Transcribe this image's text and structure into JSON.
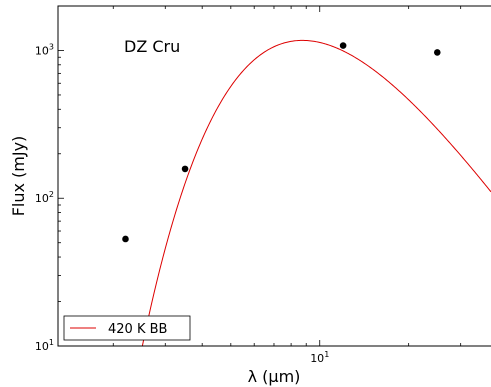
{
  "chart_data": {
    "type": "scatter",
    "title": "",
    "annotation": "DZ Cru",
    "xlabel": "λ (μm)",
    "ylabel": "Flux (mJy)",
    "xscale": "log",
    "yscale": "log",
    "xlim": [
      1.3,
      38
    ],
    "ylim": [
      10,
      2000
    ],
    "x_tick_labels": [
      {
        "value": 10,
        "base": "10",
        "exp": "1"
      }
    ],
    "y_tick_labels": [
      {
        "value": 10,
        "base": "10",
        "exp": "1"
      },
      {
        "value": 100,
        "base": "10",
        "exp": "2"
      },
      {
        "value": 1000,
        "base": "10",
        "exp": "3"
      }
    ],
    "grid": false,
    "legend_position": "bottom-left",
    "series": [
      {
        "kind": "points",
        "color": "#000000",
        "points": [
          {
            "x": 2.2,
            "y": 53
          },
          {
            "x": 3.5,
            "y": 158
          },
          {
            "x": 12,
            "y": 1080
          },
          {
            "x": 25,
            "y": 970
          }
        ]
      },
      {
        "kind": "curve",
        "name": "420 K BB",
        "color": "#dd0000",
        "temperature_K": 420,
        "peak_flux": 1170
      }
    ]
  }
}
